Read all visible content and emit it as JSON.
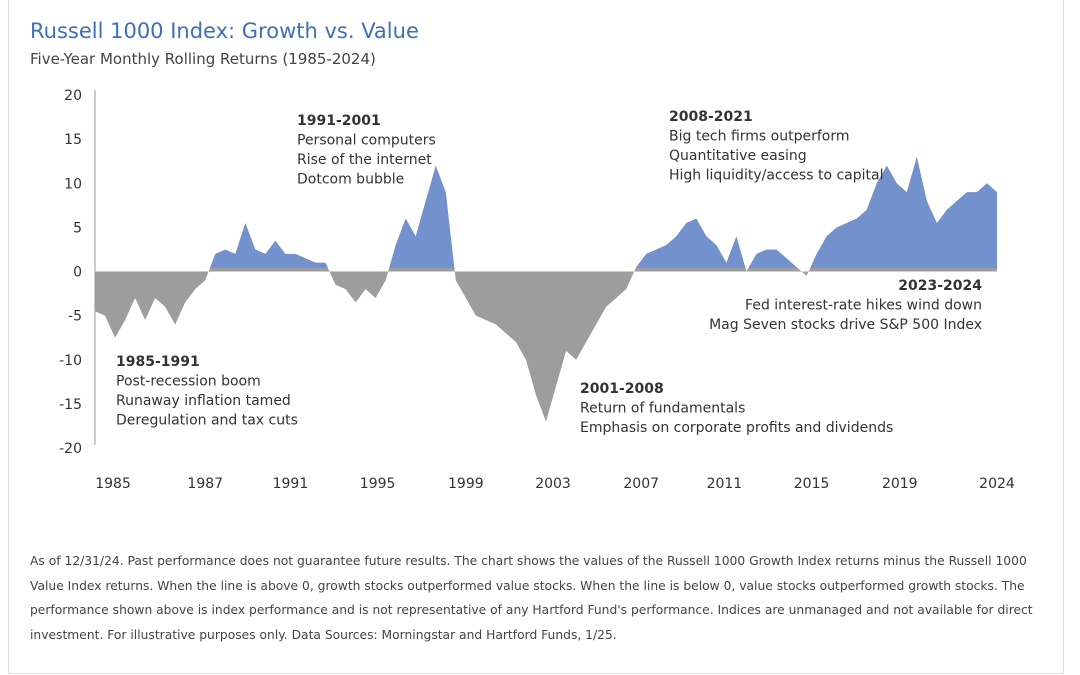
{
  "chart_data": {
    "type": "area",
    "title": "Russell 1000 Index: Growth vs. Value",
    "subtitle": "Five-Year Monthly Rolling Returns (1985-2024)",
    "values": [
      -4.5,
      -5,
      -7.5,
      -5.5,
      -3,
      -5.5,
      -3,
      -4,
      -6,
      -3.5,
      -2,
      -1,
      2,
      2.5,
      2,
      5.5,
      2.5,
      2,
      3.5,
      2,
      2,
      1.5,
      1,
      1,
      -1.5,
      -2,
      -3.5,
      -2,
      -3,
      -1,
      3,
      6,
      4,
      8,
      12,
      9,
      -1,
      -3,
      -5,
      -5.5,
      -6,
      -7,
      -8,
      -10,
      -14,
      -17,
      -13,
      -9,
      -10,
      -8,
      -6,
      -4,
      -3,
      -2,
      0.5,
      2,
      2.5,
      3,
      4,
      5.5,
      6,
      4,
      3,
      1,
      4,
      0,
      2,
      2.5,
      2.5,
      1.5,
      0.5,
      -0.5,
      2,
      4,
      5,
      5.5,
      6,
      7,
      10,
      12,
      10,
      9,
      13,
      8,
      5.5,
      7,
      8,
      9,
      9,
      10,
      9
    ],
    "positive_color": "#7391cc",
    "negative_color": "#9d9d9d",
    "xlim": [
      0,
      90
    ],
    "xticks": [
      {
        "value": 1.8,
        "label": "1985"
      },
      {
        "value": 11,
        "label": "1987"
      },
      {
        "value": 19.5,
        "label": "1991"
      },
      {
        "value": 28.2,
        "label": "1995"
      },
      {
        "value": 37,
        "label": "1999"
      },
      {
        "value": 45.7,
        "label": "2003"
      },
      {
        "value": 54.5,
        "label": "2007"
      },
      {
        "value": 62.8,
        "label": "2011"
      },
      {
        "value": 71.5,
        "label": "2015"
      },
      {
        "value": 80.3,
        "label": "2019"
      },
      {
        "value": 90,
        "label": "2024"
      }
    ],
    "ylim": [
      -20,
      20
    ],
    "yticks": [
      20,
      15,
      10,
      5,
      0,
      -5,
      -10,
      -15,
      -20
    ],
    "annotations": [
      {
        "title": "1985-1991",
        "lines": [
          "Post-recession boom",
          "Runaway inflation tamed",
          "Deregulation and tax cuts"
        ]
      },
      {
        "title": "1991-2001",
        "lines": [
          "Personal computers",
          "Rise of the internet",
          "Dotcom bubble"
        ]
      },
      {
        "title": "2001-2008",
        "lines": [
          "Return of fundamentals",
          "Emphasis on corporate profits and dividends"
        ]
      },
      {
        "title": "2008-2021",
        "lines": [
          "Big tech firms outperform",
          "Quantitative easing",
          "High liquidity/access to capital"
        ]
      },
      {
        "title": "2023-2024",
        "lines": [
          "Fed interest-rate hikes wind down",
          "Mag Seven stocks drive S&P 500 Index"
        ]
      }
    ],
    "footnote": "As of 12/31/24. Past performance does not guarantee future results. The chart shows the values of the Russell 1000 Growth Index returns minus the Russell 1000 Value Index returns. When the line is above 0, growth stocks outperformed value stocks. When the line is below 0, value stocks outperformed growth stocks. The performance shown above is index performance and is not representative of any Hartford Fund's performance. Indices are unmanaged and not available for direct investment.  For illustrative purposes only. Data Sources: Morningstar and Hartford Funds, 1/25."
  }
}
